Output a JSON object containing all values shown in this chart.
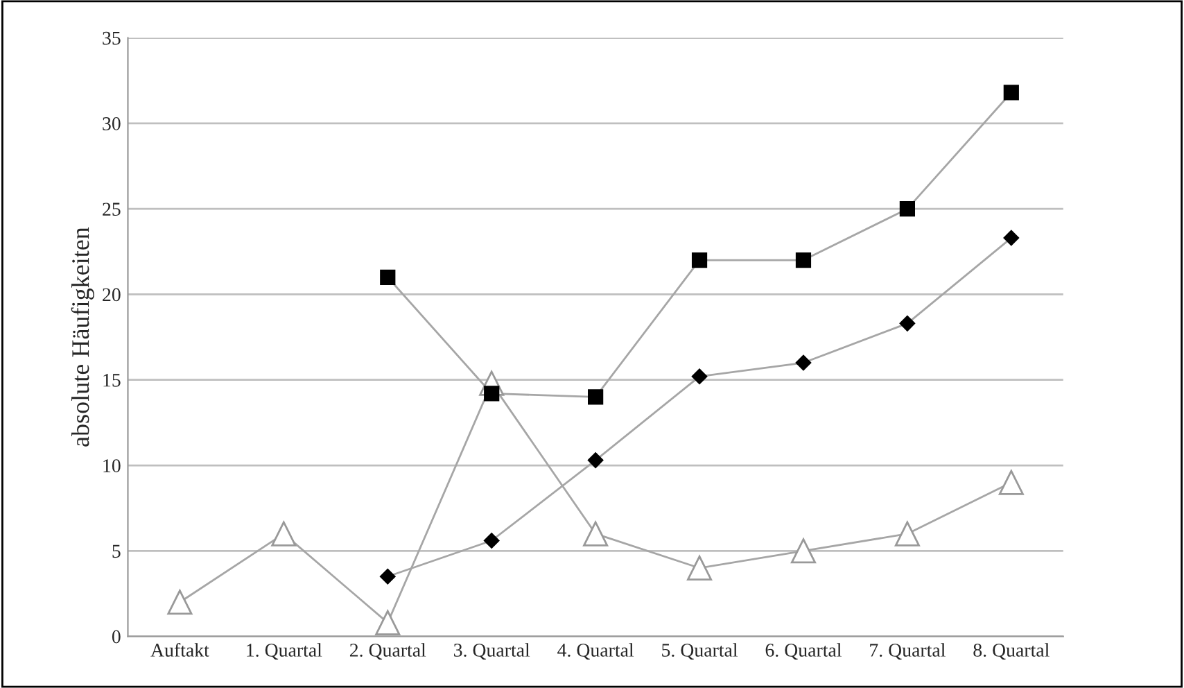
{
  "chart_data": {
    "type": "line",
    "ylabel": "absolute Häufigkeiten",
    "categories": [
      "Auftakt",
      "1. Quartal",
      "2. Quartal",
      "3. Quartal",
      "4. Quartal",
      "5. Quartal",
      "6. Quartal",
      "7. Quartal",
      "8. Quartal"
    ],
    "series": [
      {
        "color": "#000000",
        "marker": "square",
        "values": [
          null,
          null,
          21,
          14.2,
          14,
          22,
          22,
          25,
          31.8
        ]
      },
      {
        "color": "#000000",
        "marker": "diamond",
        "values": [
          null,
          null,
          3.5,
          5.6,
          10.3,
          15.2,
          16,
          18.3,
          23.3
        ]
      },
      {
        "color": "#ffffff",
        "marker": "triangle",
        "values": [
          2,
          6,
          0.8,
          14.8,
          6,
          4,
          5,
          6,
          9
        ]
      }
    ],
    "ylim": [
      0,
      35
    ],
    "yticks": [
      0,
      5,
      10,
      15,
      20,
      25,
      30,
      35
    ],
    "grid": "y",
    "legend": false
  }
}
